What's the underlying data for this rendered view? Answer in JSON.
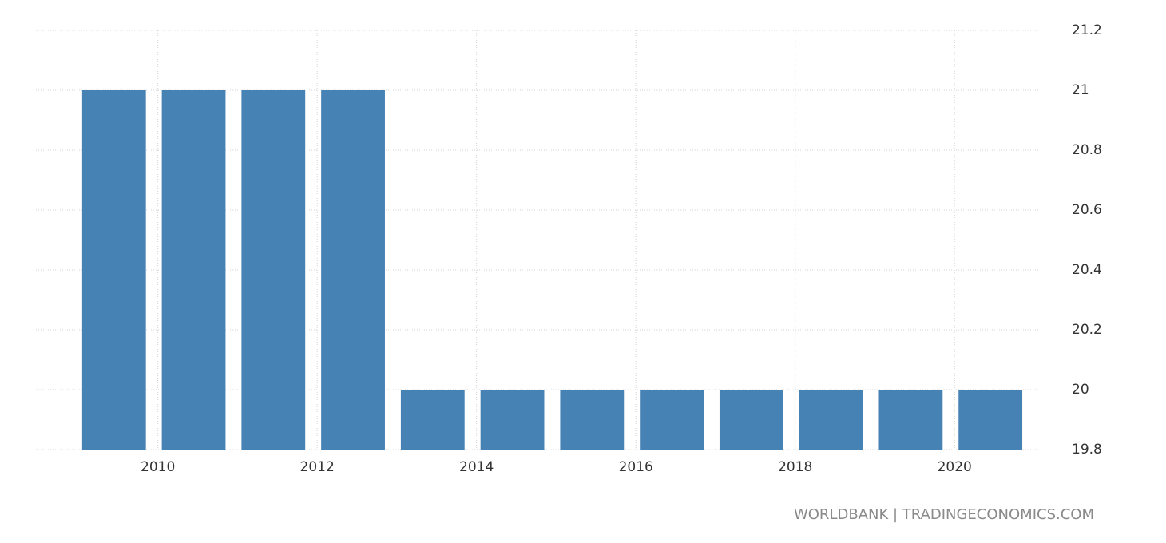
{
  "chart_data": {
    "type": "bar",
    "x": [
      2009,
      2010,
      2011,
      2012,
      2013,
      2014,
      2015,
      2016,
      2017,
      2018,
      2019,
      2020
    ],
    "values": [
      21,
      21,
      21,
      21,
      20,
      20,
      20,
      20,
      20,
      20,
      20,
      20
    ],
    "color": "#4682b4",
    "xlim": [
      2008.47,
      2021.05
    ],
    "xticks": [
      2010,
      2012,
      2014,
      2016,
      2018,
      2020
    ],
    "ylim": [
      19.8,
      21.2
    ],
    "yticks": [
      19.8,
      20,
      20.2,
      20.4,
      20.6,
      20.8,
      21,
      21.2
    ],
    "grid": true,
    "source": "WORLDBANK | TRADINGECONOMICS.COM"
  }
}
